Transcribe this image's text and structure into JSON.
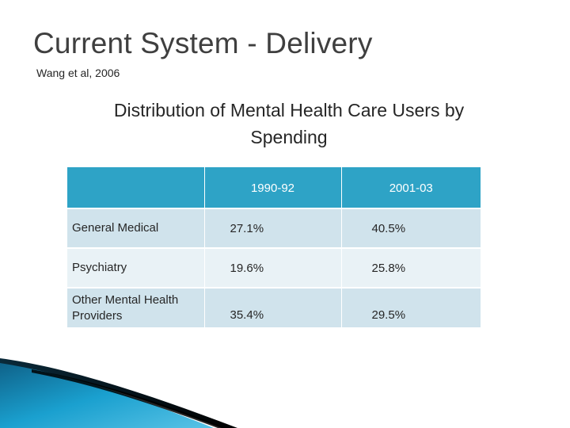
{
  "slide": {
    "title": "Current System - Delivery",
    "subtitle": "Wang et al, 2006",
    "caption_line1": "Distribution of Mental Health Care Users by",
    "caption_line2": "Spending"
  },
  "table": {
    "columns": [
      "",
      "1990-92",
      "2001-03"
    ],
    "rows": [
      {
        "label": "General Medical",
        "v1": "27.1%",
        "v2": "40.5%"
      },
      {
        "label": "Psychiatry",
        "v1": "19.6%",
        "v2": "25.8%"
      },
      {
        "label": "Other Mental Health Providers",
        "v1": "35.4%",
        "v2": "29.5%"
      }
    ]
  },
  "colors": {
    "header": "#2ea3c6",
    "row_dark": "#d0e3ec",
    "row_light": "#e9f2f6",
    "deco_blue": "#1aa0cf",
    "deco_dark": "#111111"
  },
  "icons": [
    "corner-swoosh-decoration"
  ]
}
